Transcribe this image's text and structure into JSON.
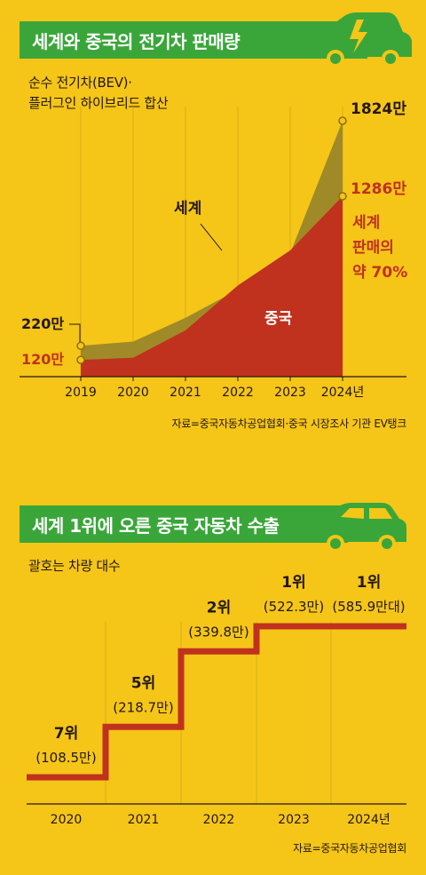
{
  "chart_data": [
    {
      "type": "area",
      "title": "세계와 중국의 전기차 판매량",
      "subtitle": [
        "순수 전기차(BEV)·",
        "플러그인 하이브리드 합산"
      ],
      "x": [
        "2019",
        "2020",
        "2021",
        "2022",
        "2023",
        "2024년"
      ],
      "series": [
        {
          "name": "세계",
          "values": [
            220,
            250,
            420,
            620,
            880,
            1824
          ],
          "color": "#A08A28"
        },
        {
          "name": "중국",
          "values": [
            120,
            135,
            330,
            650,
            900,
            1286
          ],
          "color": "#C0311E"
        }
      ],
      "point_labels": {
        "start_world": "220만",
        "start_china": "120만",
        "end_world": "1824만",
        "end_china": "1286만"
      },
      "annotation": [
        "세계",
        "판매의",
        "약 70%"
      ],
      "ylim": [
        0,
        1900
      ],
      "source": "자료=중국자동차공업협회·중국 시장조사 기관 EV탱크"
    },
    {
      "type": "line",
      "title": "세계 1위에 오른 중국 자동차 수출",
      "subtitle": "괄호는 차량 대수",
      "x": [
        "2020",
        "2021",
        "2022",
        "2023",
        "2024년"
      ],
      "ranks": [
        "7위",
        "5위",
        "2위",
        "1위",
        "1위"
      ],
      "volumes": [
        "(108.5만)",
        "(218.7만)",
        "(339.8만)",
        "(522.3만)",
        "(585.9만대)"
      ],
      "rank_values": [
        7,
        5,
        2,
        1,
        1
      ],
      "source": "자료=중국자동차공업협회",
      "color": "#C0311E"
    }
  ],
  "colors": {
    "background": "#F5C518",
    "banner": "#3AA63A",
    "world": "#A08A28",
    "china": "#C0311E"
  },
  "icons": [
    "ev-car-lightning-icon",
    "car-icon"
  ]
}
